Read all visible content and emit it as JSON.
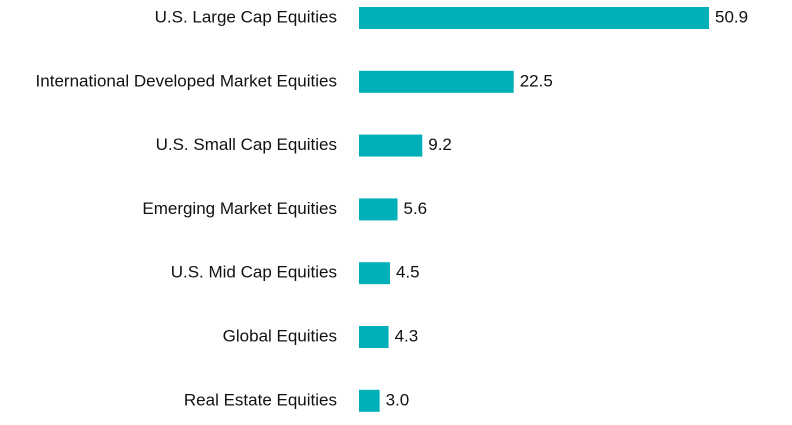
{
  "chart_data": {
    "type": "bar",
    "orientation": "horizontal",
    "categories": [
      "U.S. Large Cap Equities",
      "International Developed Market Equities",
      "U.S. Small Cap Equities",
      "Emerging Market Equities",
      "U.S. Mid Cap Equities",
      "Global Equities",
      "Real Estate Equities"
    ],
    "values": [
      50.9,
      22.5,
      9.2,
      5.6,
      4.5,
      4.3,
      3.0
    ],
    "value_labels": [
      "50.9",
      "22.5",
      "9.2",
      "5.6",
      "4.5",
      "4.3",
      "3.0"
    ],
    "title": "",
    "xlabel": "",
    "ylabel": "",
    "xlim": [
      0,
      50.9
    ],
    "grid": false,
    "legend": "none",
    "colors": {
      "bar": "#00b0b9",
      "text": "#111111"
    }
  }
}
